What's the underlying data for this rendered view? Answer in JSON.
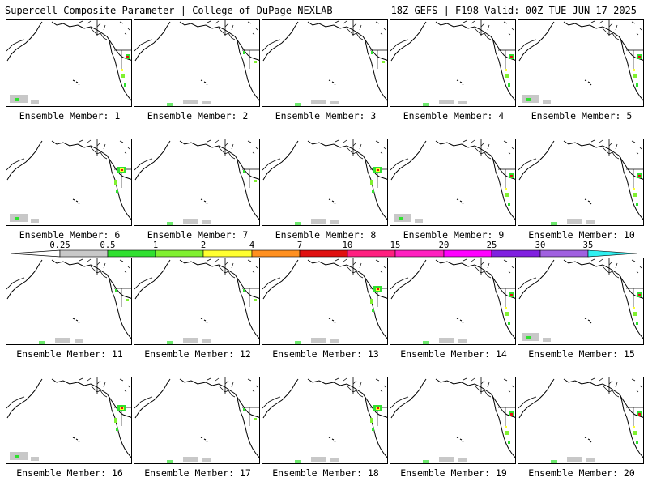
{
  "header": {
    "left": "Supercell Composite Parameter | College of DuPage NEXLAB",
    "right": "18Z GEFS | F198 Valid: 00Z TUE JUN 17 2025"
  },
  "colorbar": {
    "ticks": [
      "0.25",
      "0.5",
      "1",
      "2",
      "4",
      "7",
      "10",
      "15",
      "20",
      "25",
      "30",
      "35"
    ],
    "colors": [
      "#c8c8c8",
      "#30e030",
      "#80f030",
      "#ffff30",
      "#ff9020",
      "#e01010",
      "#ff2080",
      "#ff20c0",
      "#ff00ff",
      "#8020e0",
      "#a060e0",
      "#30f0f0"
    ]
  },
  "panels": [
    {
      "label": "Ensemble Member: 1",
      "overlay": "cen_s",
      "gray": "sw"
    },
    {
      "label": "Ensemble Member: 2",
      "overlay": "minor",
      "gray": "s"
    },
    {
      "label": "Ensemble Member: 3",
      "overlay": "minor",
      "gray": "s"
    },
    {
      "label": "Ensemble Member: 4",
      "overlay": "cen_s",
      "gray": "s"
    },
    {
      "label": "Ensemble Member: 5",
      "overlay": "cen_s",
      "gray": "sw"
    },
    {
      "label": "Ensemble Member: 6",
      "overlay": "cen_n",
      "gray": "sw"
    },
    {
      "label": "Ensemble Member: 7",
      "overlay": "minor",
      "gray": "s"
    },
    {
      "label": "Ensemble Member: 8",
      "overlay": "cen_n",
      "gray": "s"
    },
    {
      "label": "Ensemble Member: 9",
      "overlay": "cen_s",
      "gray": "sw"
    },
    {
      "label": "Ensemble Member: 10",
      "overlay": "cen_s",
      "gray": "s"
    },
    {
      "label": "Ensemble Member: 11",
      "overlay": "minor",
      "gray": "s"
    },
    {
      "label": "Ensemble Member: 12",
      "overlay": "minor",
      "gray": "s"
    },
    {
      "label": "Ensemble Member: 13",
      "overlay": "cen_n",
      "gray": "s"
    },
    {
      "label": "Ensemble Member: 14",
      "overlay": "cen_s",
      "gray": "s"
    },
    {
      "label": "Ensemble Member: 15",
      "overlay": "cen_s",
      "gray": "sw"
    },
    {
      "label": "Ensemble Member: 16",
      "overlay": "cen_n",
      "gray": "sw"
    },
    {
      "label": "Ensemble Member: 17",
      "overlay": "minor",
      "gray": "s"
    },
    {
      "label": "Ensemble Member: 18",
      "overlay": "cen_n",
      "gray": "s"
    },
    {
      "label": "Ensemble Member: 19",
      "overlay": "cen_s",
      "gray": "s"
    },
    {
      "label": "Ensemble Member: 20",
      "overlay": "cen_s",
      "gray": "s"
    }
  ]
}
